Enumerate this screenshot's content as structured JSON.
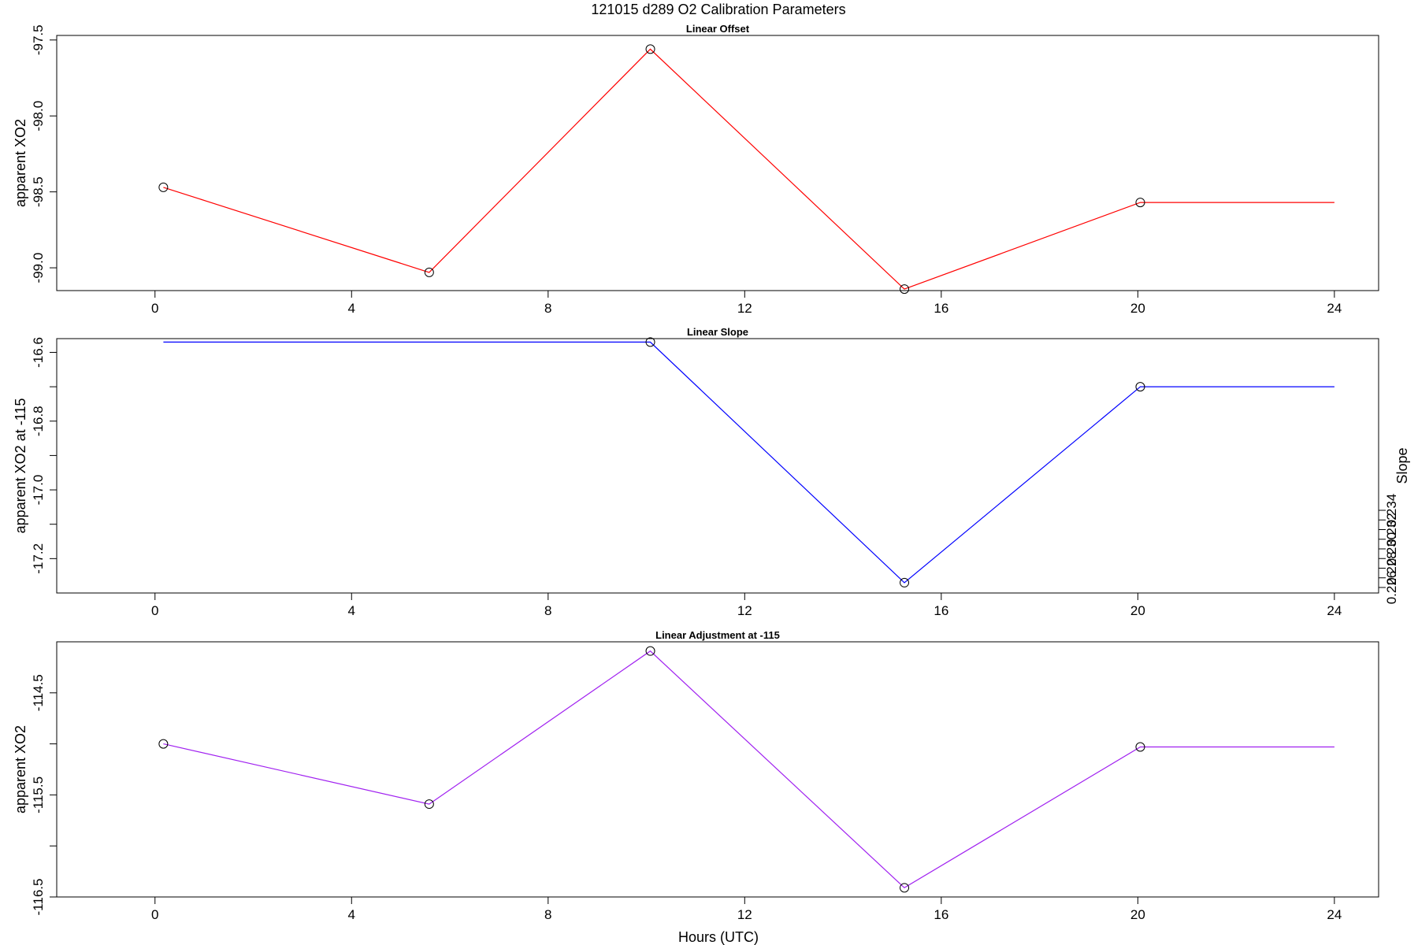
{
  "figure": {
    "title": "121015   d289   O2 Calibration Parameters",
    "xlabel": "Hours (UTC)"
  },
  "chart_data": [
    {
      "type": "line",
      "title": "Linear Offset",
      "xlabel": "",
      "ylabel": "apparent XO2",
      "xlim": [
        -2,
        24.9
      ],
      "ylim": [
        -99.15,
        -97.47
      ],
      "x_ticks": [
        0,
        4,
        8,
        12,
        16,
        20,
        24
      ],
      "y_ticks": [
        -97.5,
        -98.0,
        -98.5,
        -99.0
      ],
      "y_tick_labels": [
        "-97.5",
        "-98.0",
        "-98.5",
        "-99.0"
      ],
      "color": "#ff0000",
      "series": [
        {
          "points": [
            [
              0.17,
              -98.47
            ],
            [
              5.58,
              -99.03
            ],
            [
              10.08,
              -97.56
            ],
            [
              15.25,
              -99.14
            ],
            [
              20.05,
              -98.57
            ],
            [
              24.0,
              -98.57
            ]
          ],
          "markers": [
            0,
            1,
            2,
            3,
            4
          ]
        }
      ]
    },
    {
      "type": "line",
      "title": "Linear Slope",
      "xlabel": "",
      "ylabel": "apparent XO2 at -115",
      "ylabel_right": "Slope",
      "xlim": [
        -2,
        24.9
      ],
      "ylim": [
        -17.3,
        -16.56
      ],
      "x_ticks": [
        0,
        4,
        8,
        12,
        16,
        20,
        24
      ],
      "y_ticks": [
        -16.6,
        -16.7,
        -16.8,
        -16.9,
        -17.0,
        -17.1,
        -17.2
      ],
      "y_tick_labels": [
        "-16.6",
        "",
        "-16.8",
        "",
        "-17.0",
        "",
        "-17.2"
      ],
      "y2_ticks": [
        0.234,
        0.233,
        0.232,
        0.231,
        0.23,
        0.229,
        0.228,
        0.227,
        0.226
      ],
      "y2_tick_labels": [
        "0.234",
        "",
        "0.232",
        "",
        "0.230",
        "",
        "0.228",
        "",
        "0.226"
      ],
      "color": "#0000ff",
      "series": [
        {
          "points": [
            [
              0.17,
              -16.57
            ],
            [
              10.08,
              -16.57
            ],
            [
              15.25,
              -17.27
            ],
            [
              20.05,
              -16.7
            ],
            [
              24.0,
              -16.7
            ]
          ],
          "markers": [
            1,
            2,
            3
          ]
        }
      ]
    },
    {
      "type": "line",
      "title": "Linear Adjustment at -115",
      "xlabel": "Hours (UTC)",
      "ylabel": "apparent XO2",
      "xlim": [
        -2,
        24.9
      ],
      "ylim": [
        -116.5,
        -114.0
      ],
      "x_ticks": [
        0,
        4,
        8,
        12,
        16,
        20,
        24
      ],
      "y_ticks": [
        -114.5,
        -115.0,
        -115.5,
        -116.0,
        -116.5
      ],
      "y_tick_labels": [
        "-114.5",
        "",
        "-115.5",
        "",
        "-116.5"
      ],
      "color": "#a020f0",
      "series": [
        {
          "points": [
            [
              0.17,
              -115.0
            ],
            [
              5.58,
              -115.59
            ],
            [
              10.08,
              -114.09
            ],
            [
              15.25,
              -116.41
            ],
            [
              20.05,
              -115.03
            ],
            [
              24.0,
              -115.03
            ]
          ],
          "markers": [
            0,
            1,
            2,
            3,
            4
          ]
        }
      ]
    }
  ]
}
